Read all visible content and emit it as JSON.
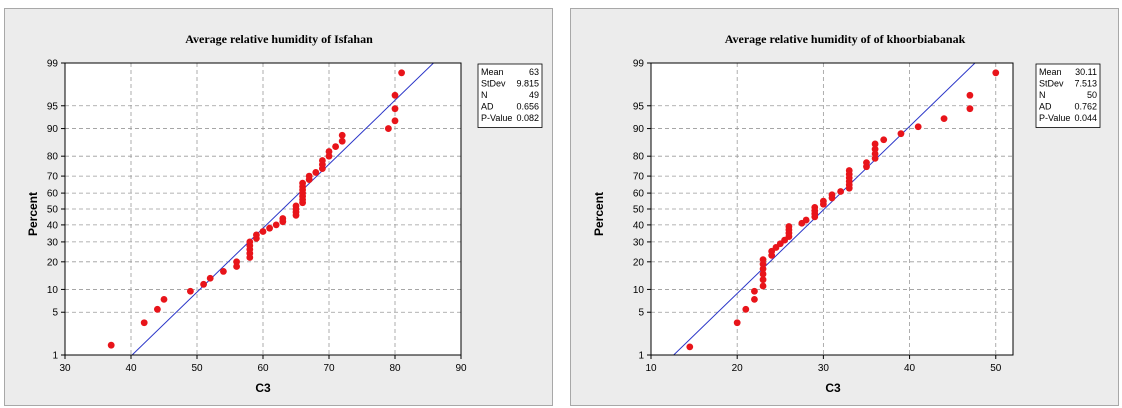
{
  "chart_data": [
    {
      "type": "scatter",
      "subtype": "normal-probability-plot",
      "title": "Average relative humidity of Isfahan",
      "xlabel": "C3",
      "ylabel": "Percent",
      "xlim": [
        30,
        90
      ],
      "x_ticks": [
        30,
        40,
        50,
        60,
        70,
        80,
        90
      ],
      "y_ticks": [
        1,
        5,
        10,
        20,
        30,
        40,
        50,
        60,
        70,
        80,
        90,
        95,
        99
      ],
      "grid": true,
      "colors": {
        "points": "#e8141a",
        "fit_line": "#2a35c8",
        "background": "#ffffff"
      },
      "fit_line": {
        "mean": 63,
        "stdev": 9.815
      },
      "stats": [
        {
          "label": "Mean",
          "value": "63"
        },
        {
          "label": "StDev",
          "value": "9.815"
        },
        {
          "label": "N",
          "value": "49"
        },
        {
          "label": "AD",
          "value": "0.656"
        },
        {
          "label": "P-Value",
          "value": "0.082"
        }
      ],
      "points": [
        [
          37,
          1.5
        ],
        [
          42,
          3.5
        ],
        [
          44,
          5.5
        ],
        [
          45,
          7.5
        ],
        [
          49,
          9.5
        ],
        [
          51,
          11.5
        ],
        [
          52,
          13.5
        ],
        [
          54,
          16
        ],
        [
          56,
          18
        ],
        [
          56,
          20
        ],
        [
          58,
          22
        ],
        [
          58,
          24
        ],
        [
          58,
          26
        ],
        [
          58,
          28
        ],
        [
          58,
          30
        ],
        [
          59,
          32
        ],
        [
          59,
          34
        ],
        [
          60,
          36
        ],
        [
          61,
          38
        ],
        [
          62,
          40
        ],
        [
          63,
          42
        ],
        [
          63,
          44
        ],
        [
          65,
          46
        ],
        [
          65,
          48
        ],
        [
          65,
          50
        ],
        [
          65,
          52
        ],
        [
          66,
          54
        ],
        [
          66,
          56
        ],
        [
          66,
          58
        ],
        [
          66,
          60
        ],
        [
          66,
          62
        ],
        [
          66,
          64
        ],
        [
          66,
          66
        ],
        [
          67,
          68
        ],
        [
          67,
          70
        ],
        [
          68,
          72
        ],
        [
          69,
          74
        ],
        [
          69,
          76
        ],
        [
          69,
          78
        ],
        [
          70,
          80
        ],
        [
          70,
          82
        ],
        [
          71,
          84
        ],
        [
          72,
          86
        ],
        [
          72,
          88
        ],
        [
          79,
          90
        ],
        [
          80,
          92
        ],
        [
          80,
          94.5
        ],
        [
          80,
          96.5
        ],
        [
          81,
          98.5
        ]
      ]
    },
    {
      "type": "scatter",
      "subtype": "normal-probability-plot",
      "title": "Average relative humidity of of khoorbiabanak",
      "xlabel": "C3",
      "ylabel": "Percent",
      "xlim": [
        10,
        52
      ],
      "x_ticks": [
        10,
        20,
        30,
        40,
        50
      ],
      "y_ticks": [
        1,
        5,
        10,
        20,
        30,
        40,
        50,
        60,
        70,
        80,
        90,
        95,
        99
      ],
      "grid": true,
      "colors": {
        "points": "#e8141a",
        "fit_line": "#2a35c8",
        "background": "#ffffff"
      },
      "fit_line": {
        "mean": 30.11,
        "stdev": 7.513
      },
      "stats": [
        {
          "label": "Mean",
          "value": "30.11"
        },
        {
          "label": "StDev",
          "value": "7.513"
        },
        {
          "label": "N",
          "value": "50"
        },
        {
          "label": "AD",
          "value": "0.762"
        },
        {
          "label": "P-Value",
          "value": "0.044"
        }
      ],
      "points": [
        [
          14.5,
          1.4
        ],
        [
          20,
          3.5
        ],
        [
          21,
          5.5
        ],
        [
          22,
          7.5
        ],
        [
          22,
          9.5
        ],
        [
          23,
          11
        ],
        [
          23,
          13
        ],
        [
          23,
          15
        ],
        [
          23,
          17
        ],
        [
          23,
          19
        ],
        [
          23,
          21
        ],
        [
          24,
          23
        ],
        [
          24,
          25
        ],
        [
          24.5,
          27
        ],
        [
          25,
          29
        ],
        [
          25.5,
          31
        ],
        [
          26,
          33
        ],
        [
          26,
          35
        ],
        [
          26,
          37
        ],
        [
          26,
          39
        ],
        [
          27.5,
          41
        ],
        [
          28,
          43
        ],
        [
          29,
          45
        ],
        [
          29,
          47
        ],
        [
          29,
          49
        ],
        [
          29,
          51
        ],
        [
          30,
          53
        ],
        [
          30,
          55
        ],
        [
          31,
          57
        ],
        [
          31,
          59
        ],
        [
          32,
          61
        ],
        [
          33,
          63
        ],
        [
          33,
          65
        ],
        [
          33,
          67
        ],
        [
          33,
          69
        ],
        [
          33,
          71
        ],
        [
          33,
          73
        ],
        [
          35,
          75
        ],
        [
          35,
          77
        ],
        [
          36,
          79
        ],
        [
          36,
          81
        ],
        [
          36,
          83
        ],
        [
          36,
          85
        ],
        [
          37,
          86.5
        ],
        [
          39,
          88.5
        ],
        [
          41,
          90.5
        ],
        [
          44,
          92.5
        ],
        [
          47,
          94.5
        ],
        [
          47,
          96.5
        ],
        [
          50,
          98.5
        ]
      ]
    }
  ]
}
